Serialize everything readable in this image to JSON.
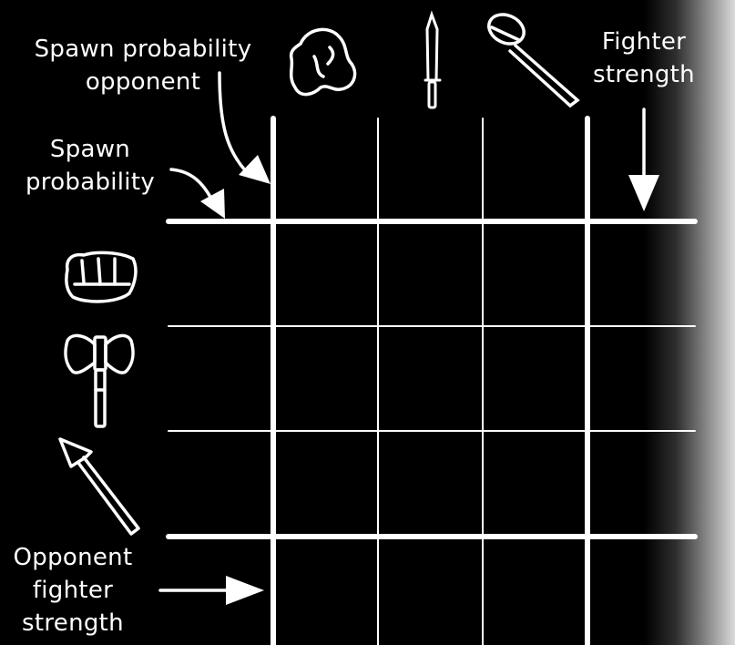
{
  "labels": {
    "spawn_probability_opponent": [
      "Spawn probability",
      "opponent"
    ],
    "spawn_probability": [
      "Spawn",
      "probability"
    ],
    "fighter_strength": [
      "Fighter",
      "strength"
    ],
    "opponent_fighter_strength": [
      "Opponent",
      "fighter",
      "strength"
    ]
  },
  "top_icons": [
    "rock-icon",
    "sword-icon",
    "mace-icon"
  ],
  "left_icons": [
    "fist-icon",
    "double-axe-icon",
    "spear-icon"
  ],
  "colors": {
    "background": "#000000",
    "foreground": "#ffffff"
  }
}
